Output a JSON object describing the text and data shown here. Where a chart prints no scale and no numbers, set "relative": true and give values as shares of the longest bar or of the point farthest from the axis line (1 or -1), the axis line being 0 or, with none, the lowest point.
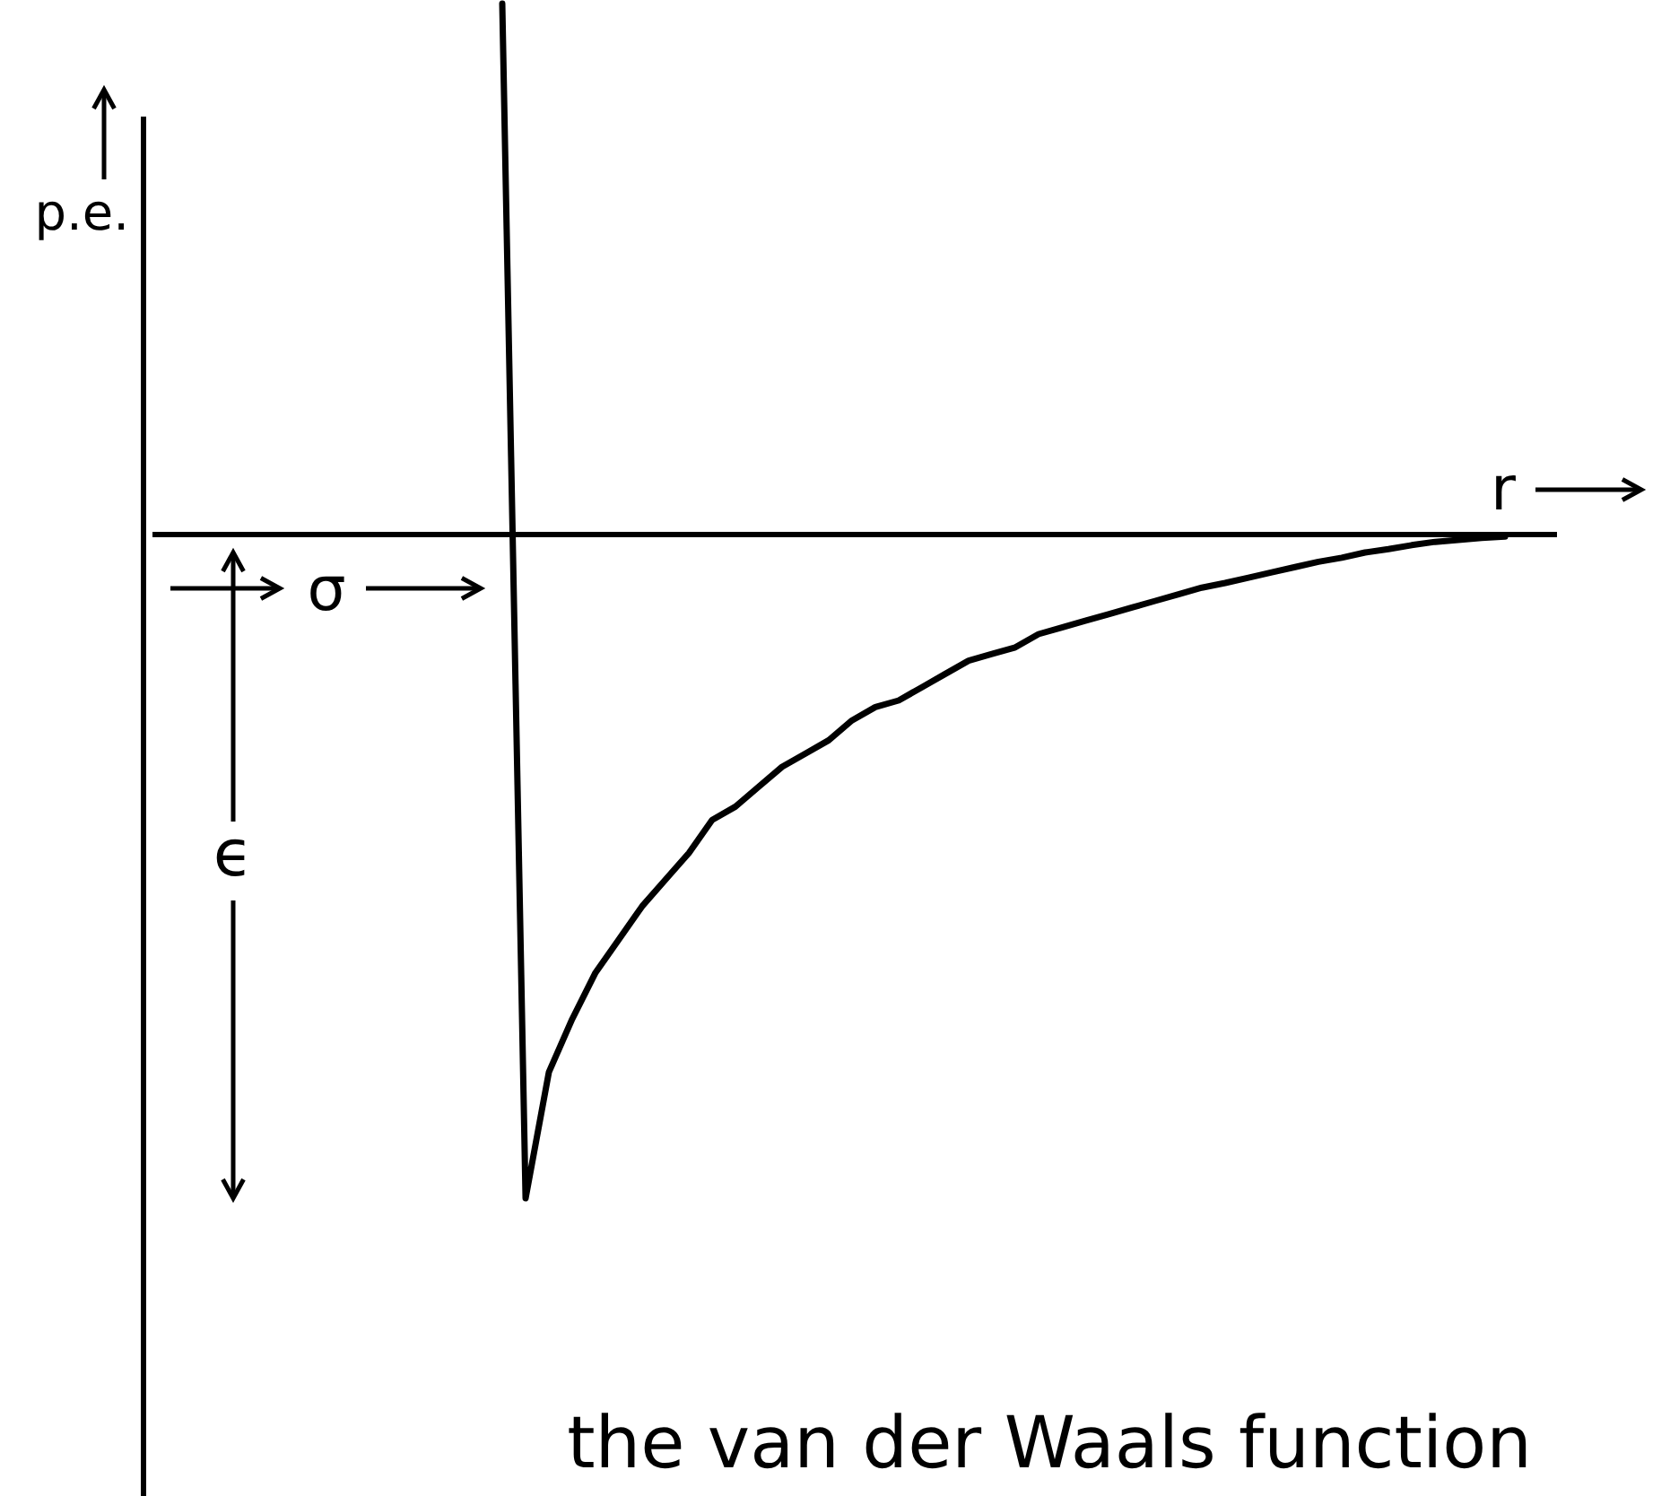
{
  "chart_data": {
    "type": "line",
    "title": "the van der Waals function",
    "xlabel": "r",
    "ylabel": "p.e.",
    "relative": true,
    "line_style": "solid",
    "annotations": [
      "σ",
      "ϵ"
    ],
    "categories": [
      null,
      null,
      null,
      null,
      null,
      null,
      null,
      null,
      null,
      null,
      null,
      null,
      null,
      null,
      null,
      null,
      null,
      null,
      null,
      null,
      null,
      null,
      null,
      null,
      null,
      null,
      null,
      null,
      null,
      null,
      null,
      null,
      null,
      null,
      null,
      null,
      null,
      null,
      null,
      null,
      null,
      null,
      null,
      null,
      null,
      null,
      null,
      null,
      null,
      null,
      null,
      null,
      null,
      null,
      null,
      null,
      null,
      null,
      null,
      null,
      null
    ],
    "series": [
      {
        "color": "#000000",
        "values": [
          null,
          null,
          null,
          null,
          null,
          null,
          null,
          null,
          null,
          null,
          null,
          null,
          null,
          null,
          null,
          0.8,
          -1,
          -0.81,
          -0.73,
          -0.66,
          -0.61,
          -0.56,
          -0.52,
          -0.48,
          -0.43,
          -0.41,
          -0.38,
          -0.35,
          -0.33,
          -0.31,
          -0.28,
          -0.26,
          -0.25,
          -0.23,
          -0.21,
          -0.19,
          -0.18,
          -0.17,
          -0.15,
          -0.14,
          -0.13,
          -0.12,
          -0.11,
          -0.1,
          -0.09,
          -0.08,
          -0.073,
          -0.065,
          -0.057,
          -0.049,
          -0.041,
          -0.035,
          -0.027,
          -0.022,
          -0.016,
          -0.011,
          -0.008,
          -0.005,
          -0.003,
          null,
          null
        ]
      }
    ]
  }
}
